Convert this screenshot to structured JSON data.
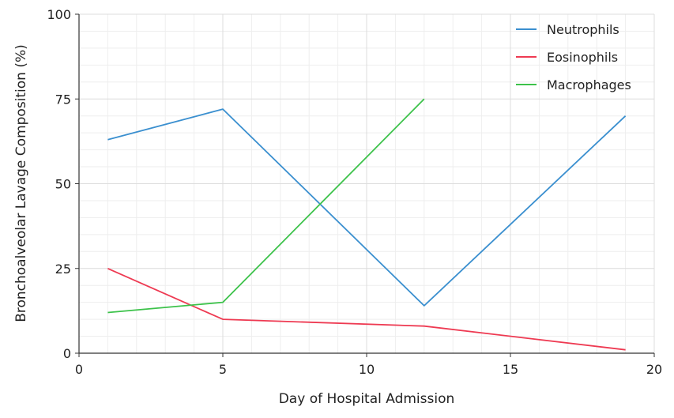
{
  "chart_data": {
    "type": "line",
    "title": "",
    "xlabel": "Day of Hospital Admission",
    "ylabel": "Bronchoalveolar Lavage Composition (%)",
    "xlim": [
      0,
      20
    ],
    "ylim": [
      0,
      100
    ],
    "xticks": [
      0,
      5,
      10,
      15,
      20
    ],
    "yticks": [
      0,
      25,
      50,
      75,
      100
    ],
    "grid": true,
    "legend_position": "top-right",
    "series": [
      {
        "name": "Neutrophils",
        "color": "#3a8fcf",
        "x": [
          1,
          5,
          12,
          19
        ],
        "y": [
          63,
          72,
          14,
          70
        ]
      },
      {
        "name": "Eosinophils",
        "color": "#ee3a52",
        "x": [
          1,
          5,
          12,
          19
        ],
        "y": [
          25,
          10,
          8,
          1
        ]
      },
      {
        "name": "Macrophages",
        "color": "#3cc24a",
        "x": [
          1,
          5,
          12
        ],
        "y": [
          12,
          15,
          75
        ]
      }
    ]
  }
}
